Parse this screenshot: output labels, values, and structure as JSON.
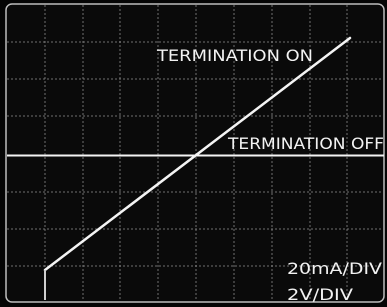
{
  "labels": {
    "termination_on": "TERMINATION ON",
    "termination_off": "TERMINATION OFF",
    "current_scale": "20mA/DIV",
    "voltage_scale": "2V/DIV"
  }
}
